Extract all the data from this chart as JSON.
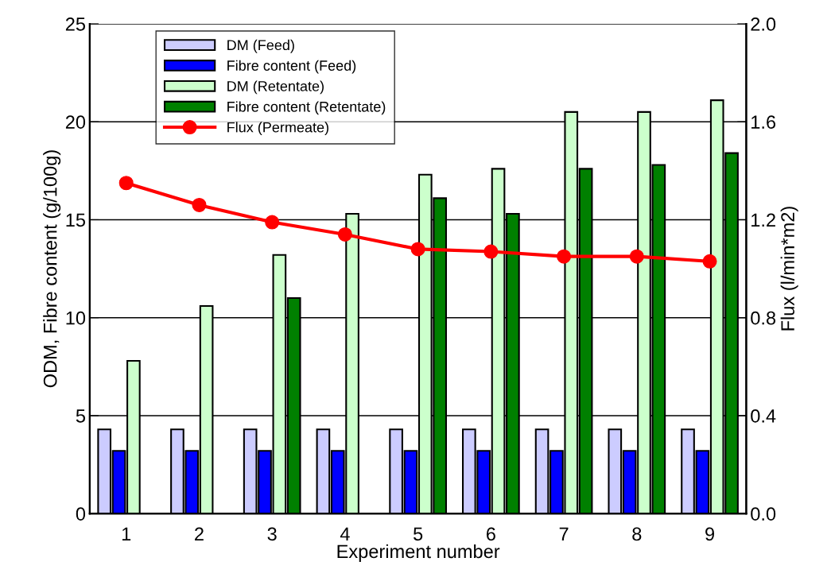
{
  "chart_data": {
    "type": "bar",
    "xlabel": "Experiment number",
    "ylabel": "ODM, Fibre content (g/100g)",
    "y2label": "Flux (l/min*m2)",
    "categories": [
      "1",
      "2",
      "3",
      "4",
      "5",
      "6",
      "7",
      "8",
      "9"
    ],
    "series": [
      {
        "name": "DM (Feed)",
        "color": "#ccccff",
        "values": [
          4.3,
          4.3,
          4.3,
          4.3,
          4.3,
          4.3,
          4.3,
          4.3,
          4.3
        ]
      },
      {
        "name": "Fibre content (Feed)",
        "color": "#0000ff",
        "values": [
          3.2,
          3.2,
          3.2,
          3.2,
          3.2,
          3.2,
          3.2,
          3.2,
          3.2
        ]
      },
      {
        "name": "DM (Retentate)",
        "color": "#ccffcc",
        "values": [
          7.8,
          10.6,
          13.2,
          15.3,
          17.3,
          17.6,
          20.5,
          20.5,
          21.1
        ]
      },
      {
        "name": "Fibre content (Retentate)",
        "color": "#008000",
        "values": [
          null,
          null,
          11.0,
          null,
          16.1,
          15.3,
          17.6,
          17.8,
          18.4
        ]
      },
      {
        "name": "Flux (Permeate)",
        "color": "#ff0000",
        "type": "line",
        "axis": "y2",
        "marker": "circle",
        "values": [
          1.35,
          1.26,
          1.19,
          1.14,
          1.08,
          1.07,
          1.05,
          1.05,
          1.03
        ]
      }
    ],
    "ylim": [
      0,
      25
    ],
    "yticks": [
      0,
      5,
      10,
      15,
      20,
      25
    ],
    "y2lim": [
      0,
      2
    ],
    "y2ticks": [
      {
        "value": 0,
        "label": "0.0"
      },
      {
        "value": 0.4,
        "label": "0.4"
      },
      {
        "value": 0.8,
        "label": "0.8"
      },
      {
        "value": 1.2,
        "label": "1.2"
      },
      {
        "value": 1.6,
        "label": "1.6"
      },
      {
        "value": 2,
        "label": "2.0"
      }
    ],
    "grid": "y",
    "legend": "top left"
  }
}
